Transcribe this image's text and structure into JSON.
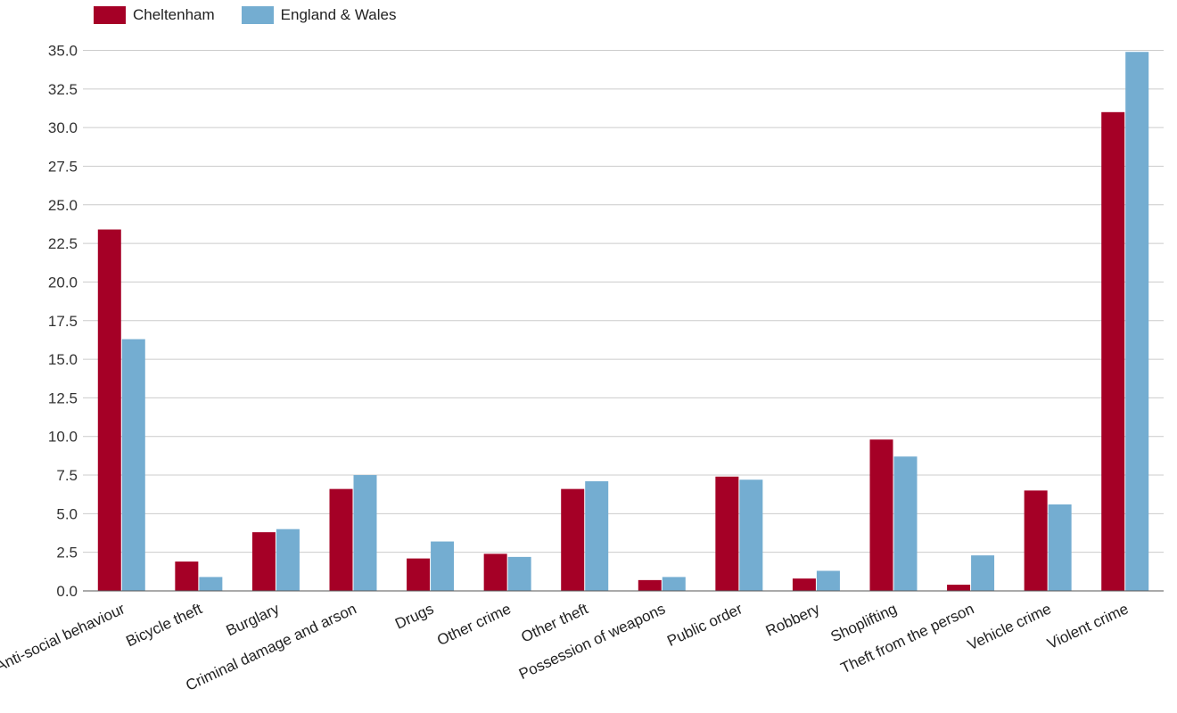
{
  "chart_data": {
    "type": "bar",
    "title": "",
    "xlabel": "",
    "ylabel": "",
    "ylim": [
      0,
      35
    ],
    "grid": true,
    "legend_position": "top-left",
    "categories": [
      "Anti-social behaviour",
      "Bicycle theft",
      "Burglary",
      "Criminal damage and arson",
      "Drugs",
      "Other crime",
      "Other theft",
      "Possession of weapons",
      "Public order",
      "Robbery",
      "Shoplifting",
      "Theft from the person",
      "Vehicle crime",
      "Violent crime"
    ],
    "y_ticks": [
      "0.0",
      "2.5",
      "5.0",
      "7.5",
      "10.0",
      "12.5",
      "15.0",
      "17.5",
      "20.0",
      "22.5",
      "25.0",
      "27.5",
      "30.0",
      "32.5",
      "35.0"
    ],
    "series": [
      {
        "name": "Cheltenham",
        "color": "#a50026",
        "values": [
          23.4,
          1.9,
          3.8,
          6.6,
          2.1,
          2.4,
          6.6,
          0.7,
          7.4,
          0.8,
          9.8,
          0.4,
          6.5,
          31.0
        ]
      },
      {
        "name": "England & Wales",
        "color": "#74add1",
        "values": [
          16.3,
          0.9,
          4.0,
          7.5,
          3.2,
          2.2,
          7.1,
          0.9,
          7.2,
          1.3,
          8.7,
          2.3,
          5.6,
          34.9
        ]
      }
    ]
  }
}
